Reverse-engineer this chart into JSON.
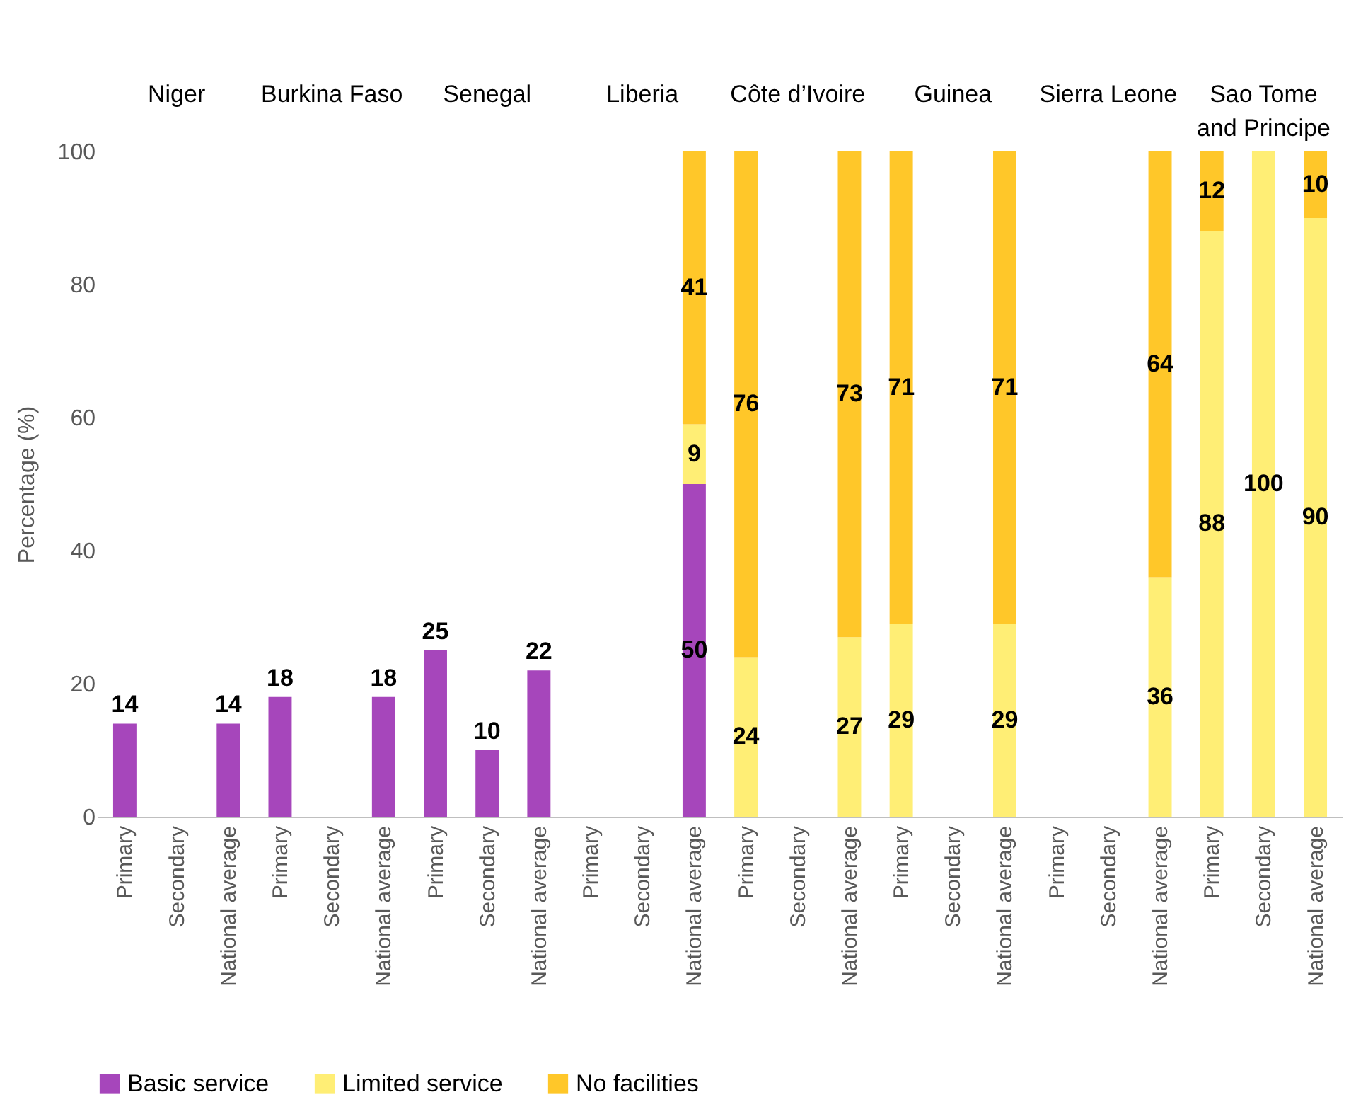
{
  "chart_data": {
    "type": "bar",
    "stacked": true,
    "ylabel": "Percentage (%)",
    "ylim": [
      0,
      100
    ],
    "yticks": [
      0,
      20,
      40,
      60,
      80,
      100
    ],
    "grid": false,
    "legend": "bottom",
    "data_labels": true,
    "annotations": [
      "Niger",
      "Burkina Faso",
      "Senegal",
      "Liberia",
      "Côte d’Ivoire",
      "Guinea",
      "Sierra Leone",
      "Sao Tome and Principe"
    ],
    "categories": [
      "Primary",
      "Secondary",
      "National average",
      "Primary",
      "Secondary",
      "National average",
      "Primary",
      "Secondary",
      "National average",
      "Primary",
      "Secondary",
      "National average",
      "Primary",
      "Secondary",
      "National average",
      "Primary",
      "Secondary",
      "National average",
      "Primary",
      "Secondary",
      "National average",
      "Primary",
      "Secondary",
      "National average"
    ],
    "series": [
      {
        "name": "Basic service",
        "color": "#a646bb",
        "values": [
          14,
          null,
          14,
          18,
          null,
          18,
          25,
          10,
          22,
          null,
          null,
          50,
          null,
          null,
          null,
          null,
          null,
          null,
          null,
          null,
          null,
          null,
          null,
          null
        ]
      },
      {
        "name": "Limited service",
        "color": "#ffee75",
        "values": [
          null,
          null,
          null,
          null,
          null,
          null,
          null,
          null,
          null,
          null,
          null,
          9,
          24,
          null,
          27,
          29,
          null,
          29,
          null,
          null,
          36,
          88,
          100,
          90
        ]
      },
      {
        "name": "No facilities",
        "color": "#ffc729",
        "values": [
          null,
          null,
          null,
          null,
          null,
          null,
          null,
          null,
          null,
          null,
          null,
          41,
          76,
          null,
          73,
          71,
          null,
          71,
          null,
          null,
          64,
          12,
          null,
          10
        ]
      }
    ]
  }
}
